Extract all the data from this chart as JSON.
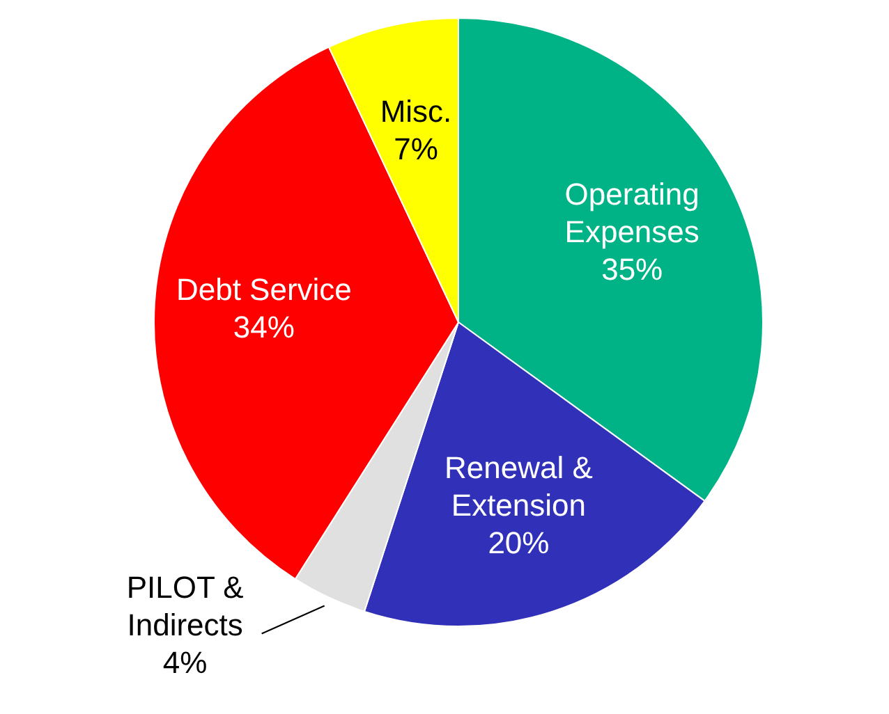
{
  "chart_data": {
    "type": "pie",
    "categories": [
      "Operating Expenses",
      "Renewal & Extension",
      "PILOT & Indirects",
      "Debt Service",
      "Misc."
    ],
    "values": [
      35,
      20,
      4,
      34,
      7
    ],
    "value_labels": [
      "35%",
      "20%",
      "4%",
      "34%",
      "7%"
    ],
    "colors": [
      "#00b386",
      "#3030b8",
      "#e0e0e0",
      "#ff0000",
      "#ffff00"
    ],
    "legend": false
  }
}
